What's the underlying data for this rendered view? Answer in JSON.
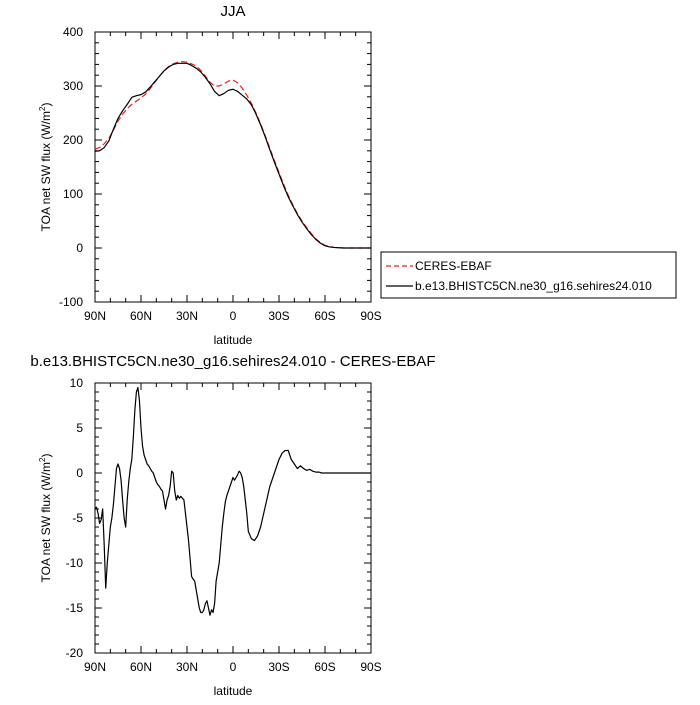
{
  "chart_data": [
    {
      "type": "line",
      "title": "JJA",
      "xlabel": "latitude",
      "ylabel_main": "TOA net SW flux (W/m",
      "ylabel_sup": "2",
      "ylabel_close": ")",
      "xlim": [
        90,
        -90
      ],
      "ylim": [
        -100,
        400
      ],
      "xtick_values": [
        90,
        60,
        30,
        0,
        -30,
        -60,
        -90
      ],
      "xtick_labels": [
        "90N",
        "60N",
        "30N",
        "0",
        "30S",
        "60S",
        "90S"
      ],
      "ytick_values": [
        -100,
        0,
        100,
        200,
        300,
        400
      ],
      "ytick_labels": [
        "-100",
        "0",
        "100",
        "200",
        "300",
        "400"
      ],
      "legend_position": "right",
      "series": [
        {
          "name": "CERES-EBAF",
          "color": "#e8211e",
          "dash": "dashed",
          "x": [
            90,
            87,
            84,
            81,
            78,
            75,
            72,
            69,
            66,
            63,
            60,
            57,
            54,
            51,
            48,
            45,
            42,
            39,
            36,
            33,
            30,
            27,
            24,
            21,
            18,
            15,
            12,
            9,
            6,
            3,
            0,
            -3,
            -6,
            -9,
            -12,
            -15,
            -18,
            -21,
            -24,
            -27,
            -30,
            -33,
            -36,
            -39,
            -42,
            -45,
            -48,
            -51,
            -54,
            -57,
            -60,
            -63,
            -66,
            -69,
            -72,
            -75,
            -78,
            -81,
            -84,
            -87,
            -90
          ],
          "y": [
            183,
            186,
            193,
            203,
            218,
            235,
            248,
            258,
            266,
            272,
            278,
            285,
            295,
            307,
            318,
            328,
            336,
            341,
            344,
            345,
            344,
            341,
            337,
            329,
            318,
            307,
            300,
            300,
            304,
            309,
            311,
            306,
            296,
            283,
            268,
            250,
            230,
            208,
            185,
            162,
            140,
            118,
            98,
            80,
            64,
            50,
            38,
            27,
            17,
            10,
            5,
            3,
            1,
            0.5,
            0,
            0,
            0,
            0,
            0,
            0,
            0
          ]
        },
        {
          "name": "b.e13.BHISTC5CN.ne30_g16.sehires24.010",
          "color": "#000000",
          "dash": "solid",
          "x": [
            90,
            87,
            84,
            81,
            78,
            75,
            72,
            69,
            66,
            63,
            60,
            57,
            54,
            51,
            48,
            45,
            42,
            39,
            36,
            33,
            30,
            27,
            24,
            21,
            18,
            15,
            12,
            9,
            6,
            3,
            0,
            -3,
            -6,
            -9,
            -12,
            -15,
            -18,
            -21,
            -24,
            -27,
            -30,
            -33,
            -36,
            -39,
            -42,
            -45,
            -48,
            -51,
            -54,
            -57,
            -60,
            -63,
            -66,
            -69,
            -72,
            -75,
            -78,
            -81,
            -84,
            -87,
            -90
          ],
          "y": [
            179,
            180,
            186,
            198,
            220,
            240,
            254,
            266,
            279,
            282,
            284,
            289,
            298,
            308,
            318,
            328,
            335,
            340,
            342,
            342,
            342,
            338,
            333,
            326,
            316,
            304,
            290,
            282,
            286,
            292,
            294,
            290,
            283,
            276,
            265,
            248,
            228,
            206,
            182,
            159,
            137,
            115,
            95,
            78,
            62,
            48,
            36,
            25,
            16,
            9,
            4,
            2,
            1,
            0.5,
            0,
            0,
            0,
            0,
            0,
            0,
            0
          ]
        }
      ]
    },
    {
      "type": "line",
      "title": "b.e13.BHISTC5CN.ne30_g16.sehires24.010 - CERES-EBAF",
      "xlabel": "latitude",
      "ylabel_main": "TOA net SW flux (W/m",
      "ylabel_sup": "2",
      "ylabel_close": ")",
      "xlim": [
        90,
        -90
      ],
      "ylim": [
        -20,
        10
      ],
      "xtick_values": [
        90,
        60,
        30,
        0,
        -30,
        -60,
        -90
      ],
      "xtick_labels": [
        "90N",
        "60N",
        "30N",
        "0",
        "30S",
        "60S",
        "90S"
      ],
      "ytick_values": [
        -20,
        -15,
        -10,
        -5,
        0,
        5,
        10
      ],
      "ytick_labels": [
        "-20",
        "-15",
        "-10",
        "-5",
        "0",
        "5",
        "10"
      ],
      "series": [
        {
          "color": "#000000",
          "dash": "solid",
          "x": [
            90,
            89,
            88,
            87,
            86,
            85,
            84,
            83,
            82,
            81,
            80,
            79,
            78,
            77,
            76,
            75,
            74,
            73,
            72,
            71,
            70,
            69,
            68,
            67,
            66,
            65,
            64,
            63,
            62,
            61,
            60,
            59,
            58,
            57,
            56,
            55,
            54,
            53,
            52,
            51,
            50,
            49,
            48,
            47,
            46,
            45,
            44,
            43,
            42,
            41,
            40,
            39,
            38,
            37,
            36,
            35,
            34,
            33,
            32,
            31,
            30,
            29,
            28,
            27,
            26,
            25,
            24,
            23,
            22,
            21,
            20,
            19,
            18,
            17,
            16,
            15,
            14,
            13,
            12,
            11,
            10,
            9,
            8,
            7,
            6,
            5,
            4,
            3,
            2,
            1,
            0,
            -1,
            -2,
            -3,
            -4,
            -5,
            -6,
            -7,
            -8,
            -9,
            -10,
            -12,
            -14,
            -16,
            -18,
            -20,
            -22,
            -24,
            -26,
            -28,
            -30,
            -32,
            -34,
            -36,
            -38,
            -40,
            -42,
            -44,
            -46,
            -48,
            -50,
            -52,
            -54,
            -56,
            -58,
            -60,
            -62,
            -64,
            -66,
            -68,
            -70,
            -72,
            -74,
            -76,
            -78,
            -80,
            -82,
            -84,
            -86,
            -88,
            -90
          ],
          "y": [
            -4,
            -3.8,
            -4.5,
            -5.6,
            -5.2,
            -4,
            -8,
            -12.8,
            -10,
            -8,
            -6,
            -5,
            -3.5,
            -1.5,
            0.5,
            1,
            0.5,
            -0.8,
            -3,
            -5,
            -6,
            -3,
            -1,
            0.5,
            1.5,
            4,
            7,
            9,
            9.5,
            8,
            5,
            3,
            2,
            1.5,
            1,
            0.8,
            0.5,
            0.2,
            0,
            -0.5,
            -1,
            -1.3,
            -1.5,
            -1.8,
            -2,
            -3,
            -4,
            -3,
            -2.5,
            -1.5,
            0.2,
            0,
            -2,
            -3,
            -2.5,
            -2.8,
            -2.6,
            -2.8,
            -3,
            -4.5,
            -6,
            -7.5,
            -9.5,
            -11.5,
            -11.8,
            -12,
            -13,
            -14,
            -15,
            -15.5,
            -15.5,
            -15.2,
            -14.5,
            -14.2,
            -15,
            -15.8,
            -15.2,
            -15.5,
            -14.5,
            -12,
            -11,
            -10,
            -8,
            -6,
            -4.5,
            -3.2,
            -2.5,
            -2,
            -1.5,
            -1,
            -0.5,
            -0.8,
            -0.5,
            -0.2,
            0.2,
            0,
            -0.5,
            -1.5,
            -3,
            -4.5,
            -6.5,
            -7.3,
            -7.5,
            -7,
            -6,
            -4.5,
            -3,
            -1.5,
            -0.5,
            0.5,
            1.5,
            2.2,
            2.5,
            2.5,
            1.5,
            1,
            0.5,
            0.8,
            0.5,
            0.3,
            0.4,
            0.2,
            0.1,
            0.1,
            0,
            0,
            0,
            0,
            0,
            0,
            0,
            0,
            0,
            0,
            0,
            0,
            0,
            0,
            0,
            0,
            0
          ]
        }
      ]
    }
  ]
}
